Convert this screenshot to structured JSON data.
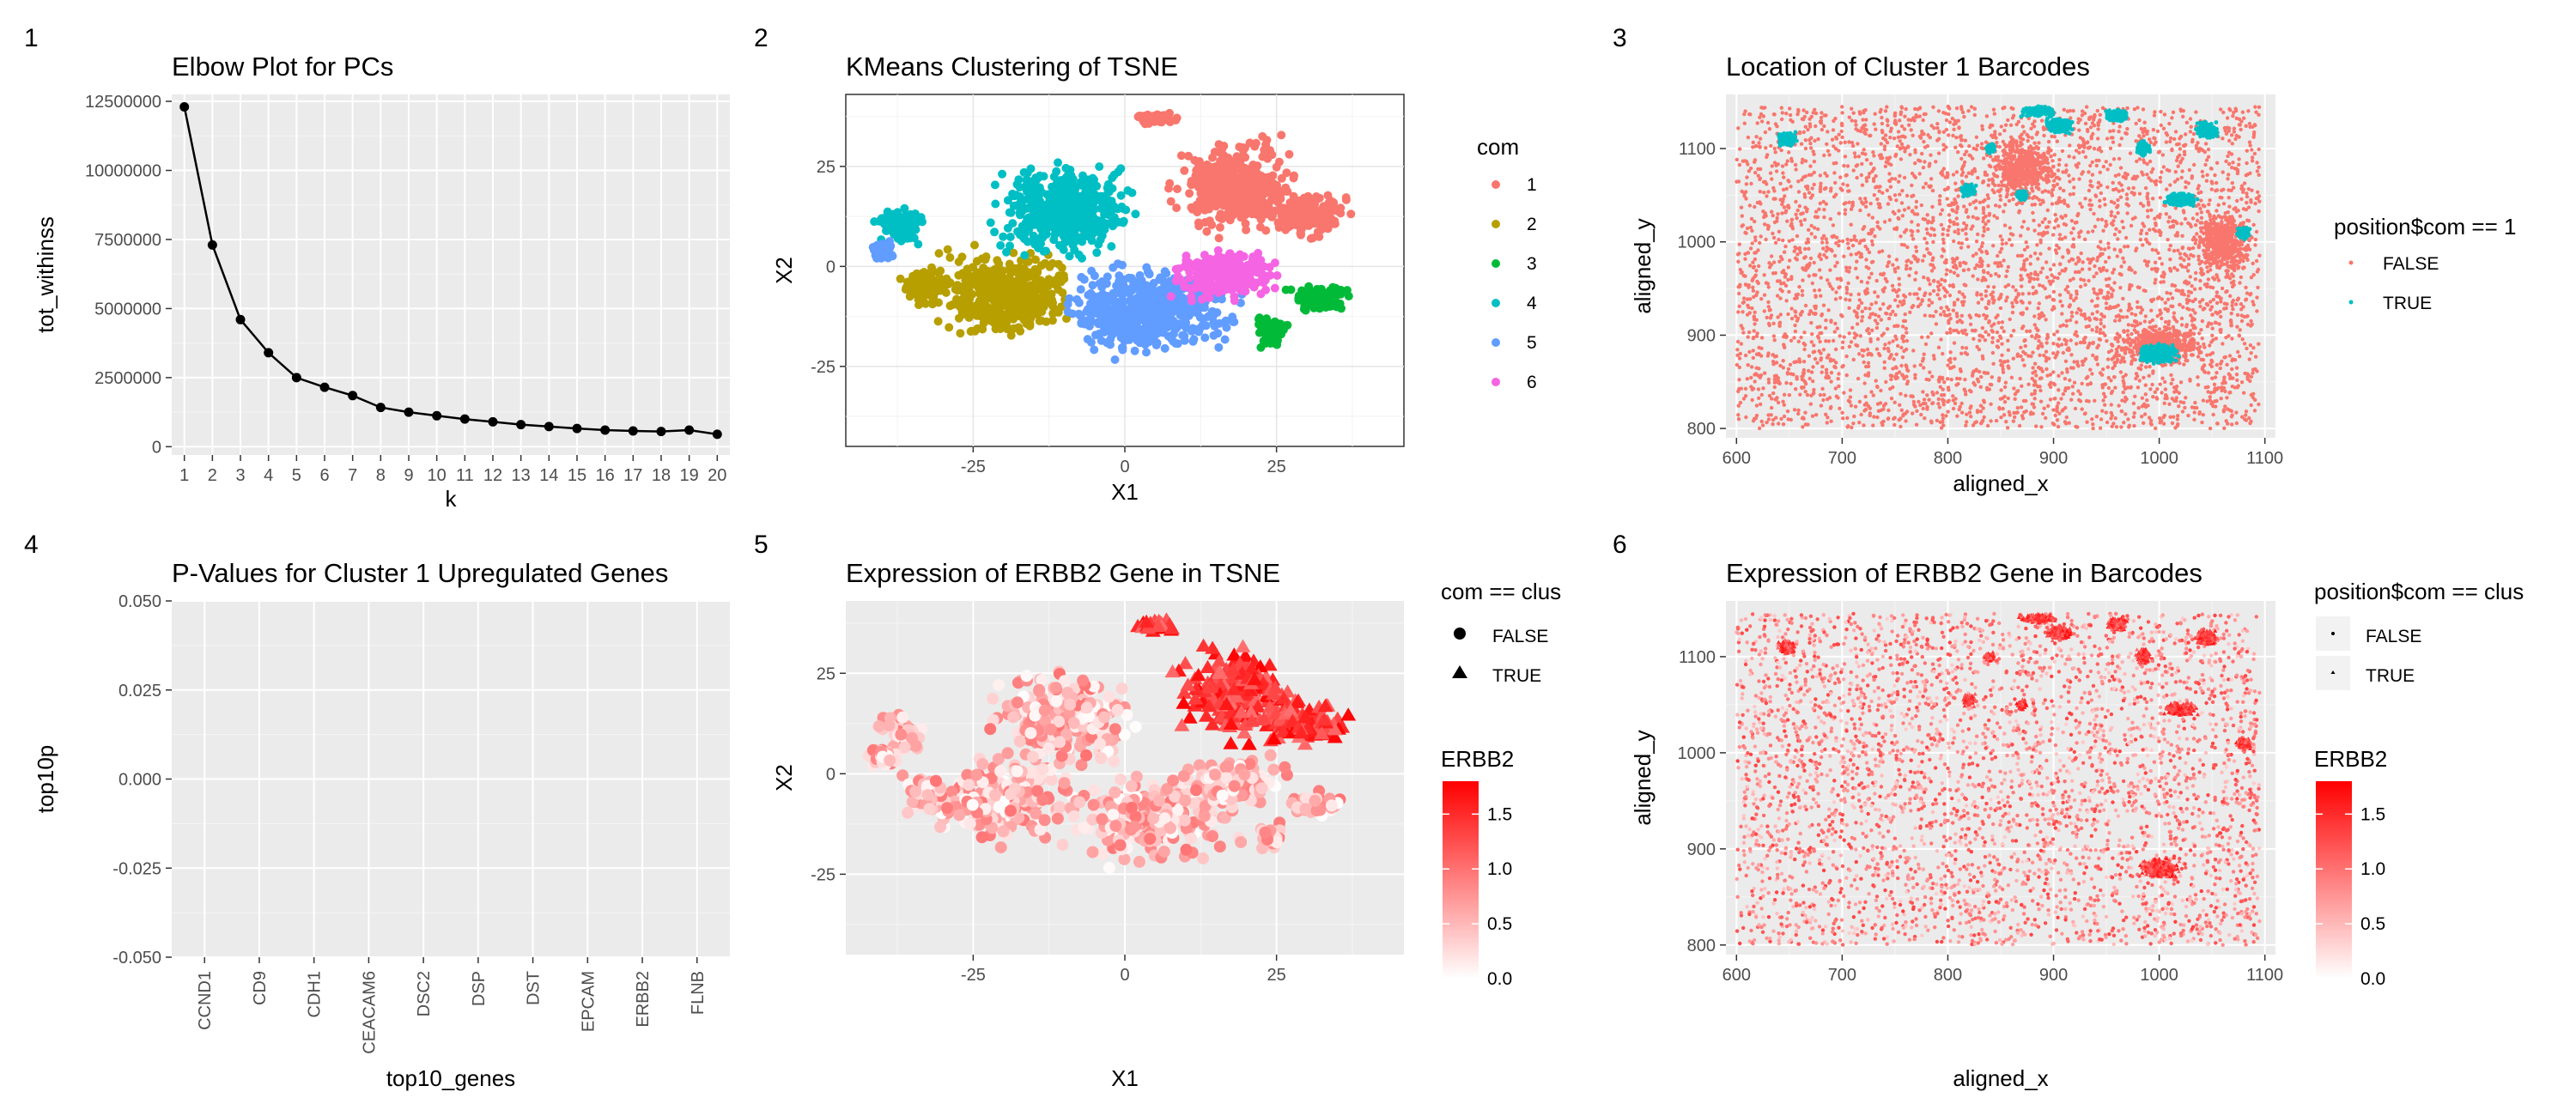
{
  "panel_tags": [
    "1",
    "2",
    "3",
    "4",
    "5",
    "6"
  ],
  "colors": {
    "panel_bg": "#EBEBEB",
    "grid": "#FFFFFF",
    "com": [
      "#F8766D",
      "#B79F00",
      "#00BA38",
      "#00BFC4",
      "#619CFF",
      "#F564E3"
    ],
    "false": "#F8766D",
    "true": "#00BFC4",
    "grad_low": "#FFFFFF",
    "grad_high": "#FF0000"
  },
  "chart_data": [
    {
      "type": "line",
      "title": "Elbow Plot for PCs",
      "xlabel": "k",
      "ylabel": "tot_withinss",
      "x": [
        1,
        2,
        3,
        4,
        5,
        6,
        7,
        8,
        9,
        10,
        11,
        12,
        13,
        14,
        15,
        16,
        17,
        18,
        19,
        20
      ],
      "values": [
        12300000,
        7300000,
        4600000,
        3400000,
        2500000,
        2150000,
        1850000,
        1420000,
        1250000,
        1120000,
        1000000,
        900000,
        800000,
        730000,
        660000,
        600000,
        570000,
        550000,
        600000,
        450000
      ],
      "ylim": [
        0,
        12500000
      ],
      "yticks": [
        "0",
        "2500000",
        "5000000",
        "7500000",
        "10000000",
        "12500000"
      ],
      "xticks": [
        "1",
        "2",
        "3",
        "4",
        "5",
        "6",
        "7",
        "8",
        "9",
        "10",
        "11",
        "12",
        "13",
        "14",
        "15",
        "16",
        "17",
        "18",
        "19",
        "20"
      ],
      "grid": true
    },
    {
      "type": "scatter",
      "title": "KMeans Clustering of TSNE",
      "xlabel": "X1",
      "ylabel": "X2",
      "xlim": [
        -46,
        46
      ],
      "ylim": [
        -45,
        43
      ],
      "xticks": [
        "-25",
        "0",
        "25"
      ],
      "yticks": [
        "-25",
        "0",
        "25"
      ],
      "legend_title": "com",
      "legend_labels": [
        "1",
        "2",
        "3",
        "4",
        "5",
        "6"
      ],
      "legend_position": "right",
      "clusters": [
        {
          "name": "1",
          "regions": [
            [
              18,
              20,
              12,
              14
            ],
            [
              30,
              13,
              9,
              7
            ],
            [
              5,
              37,
              4,
              2
            ]
          ]
        },
        {
          "name": "2",
          "regions": [
            [
              -20,
              -7,
              14,
              13
            ],
            [
              -33,
              -5,
              5,
              6
            ]
          ]
        },
        {
          "name": "3",
          "regions": [
            [
              32,
              -8,
              6,
              4
            ],
            [
              24,
              -16,
              3,
              5
            ]
          ]
        },
        {
          "name": "4",
          "regions": [
            [
              -10,
              14,
              14,
              14
            ],
            [
              -37,
              10,
              5,
              6
            ]
          ]
        },
        {
          "name": "5",
          "regions": [
            [
              4,
              -11,
              17,
              13
            ],
            [
              -40,
              4,
              3,
              3
            ]
          ]
        },
        {
          "name": "6",
          "regions": [
            [
              17,
              -2,
              11,
              8
            ]
          ]
        }
      ]
    },
    {
      "type": "scatter",
      "title": "Location of Cluster 1 Barcodes",
      "xlabel": "aligned_x",
      "ylabel": "aligned_y",
      "xlim": [
        590,
        1110
      ],
      "ylim": [
        790,
        1158
      ],
      "xticks": [
        "600",
        "700",
        "800",
        "900",
        "1000",
        "1100"
      ],
      "yticks": [
        "800",
        "900",
        "1000",
        "1100"
      ],
      "legend_title": "position$com == 1",
      "legend_labels": [
        "FALSE",
        "TRUE"
      ],
      "legend_position": "right",
      "true_regions": [
        [
          648,
          1110,
          10,
          9
        ],
        [
          1000,
          880,
          22,
          12
        ],
        [
          1020,
          1045,
          18,
          8
        ],
        [
          1080,
          1010,
          8,
          8
        ],
        [
          905,
          1125,
          15,
          10
        ],
        [
          960,
          1135,
          12,
          8
        ],
        [
          985,
          1100,
          8,
          10
        ],
        [
          1045,
          1120,
          12,
          10
        ],
        [
          820,
          1055,
          8,
          8
        ],
        [
          870,
          1050,
          6,
          6
        ],
        [
          885,
          1140,
          20,
          6
        ],
        [
          840,
          1100,
          6,
          6
        ]
      ]
    },
    {
      "type": "bar",
      "title": "P-Values for Cluster 1 Upregulated Genes",
      "xlabel": "top10_genes",
      "ylabel": "top10p",
      "categories": [
        "CCND1",
        "CD9",
        "CDH1",
        "CEACAM6",
        "DSC2",
        "DSP",
        "DST",
        "EPCAM",
        "ERBB2",
        "FLNB"
      ],
      "values": [
        0,
        0,
        0,
        0,
        0,
        0,
        0,
        0,
        0,
        0
      ],
      "ylim": [
        -0.05,
        0.05
      ],
      "yticks": [
        "-0.050",
        "-0.025",
        "0.000",
        "0.025",
        "0.050"
      ]
    },
    {
      "type": "scatter",
      "title": "Expression of ERBB2 Gene in TSNE",
      "xlabel": "X1",
      "ylabel": "X2",
      "xlim": [
        -46,
        46
      ],
      "ylim": [
        -45,
        43
      ],
      "xticks": [
        "-25",
        "0",
        "25"
      ],
      "yticks": [
        "-25",
        "0",
        "25"
      ],
      "legend_title": "com == clus",
      "legend_labels": [
        "FALSE",
        "TRUE"
      ],
      "color_title": "ERBB2",
      "color_range": [
        0,
        1.8
      ],
      "color_ticks": [
        "0.0",
        "0.5",
        "1.0",
        "1.5"
      ],
      "legend_position": "right"
    },
    {
      "type": "scatter",
      "title": "Expression of ERBB2 Gene in Barcodes",
      "xlabel": "aligned_x",
      "ylabel": "aligned_y",
      "xlim": [
        590,
        1110
      ],
      "ylim": [
        790,
        1158
      ],
      "xticks": [
        "600",
        "700",
        "800",
        "900",
        "1000",
        "1100"
      ],
      "yticks": [
        "800",
        "900",
        "1000",
        "1100"
      ],
      "legend_title": "position$com == clus",
      "legend_labels": [
        "FALSE",
        "TRUE"
      ],
      "color_title": "ERBB2",
      "color_range": [
        0,
        1.8
      ],
      "color_ticks": [
        "0.0",
        "0.5",
        "1.0",
        "1.5"
      ],
      "legend_position": "right"
    }
  ]
}
